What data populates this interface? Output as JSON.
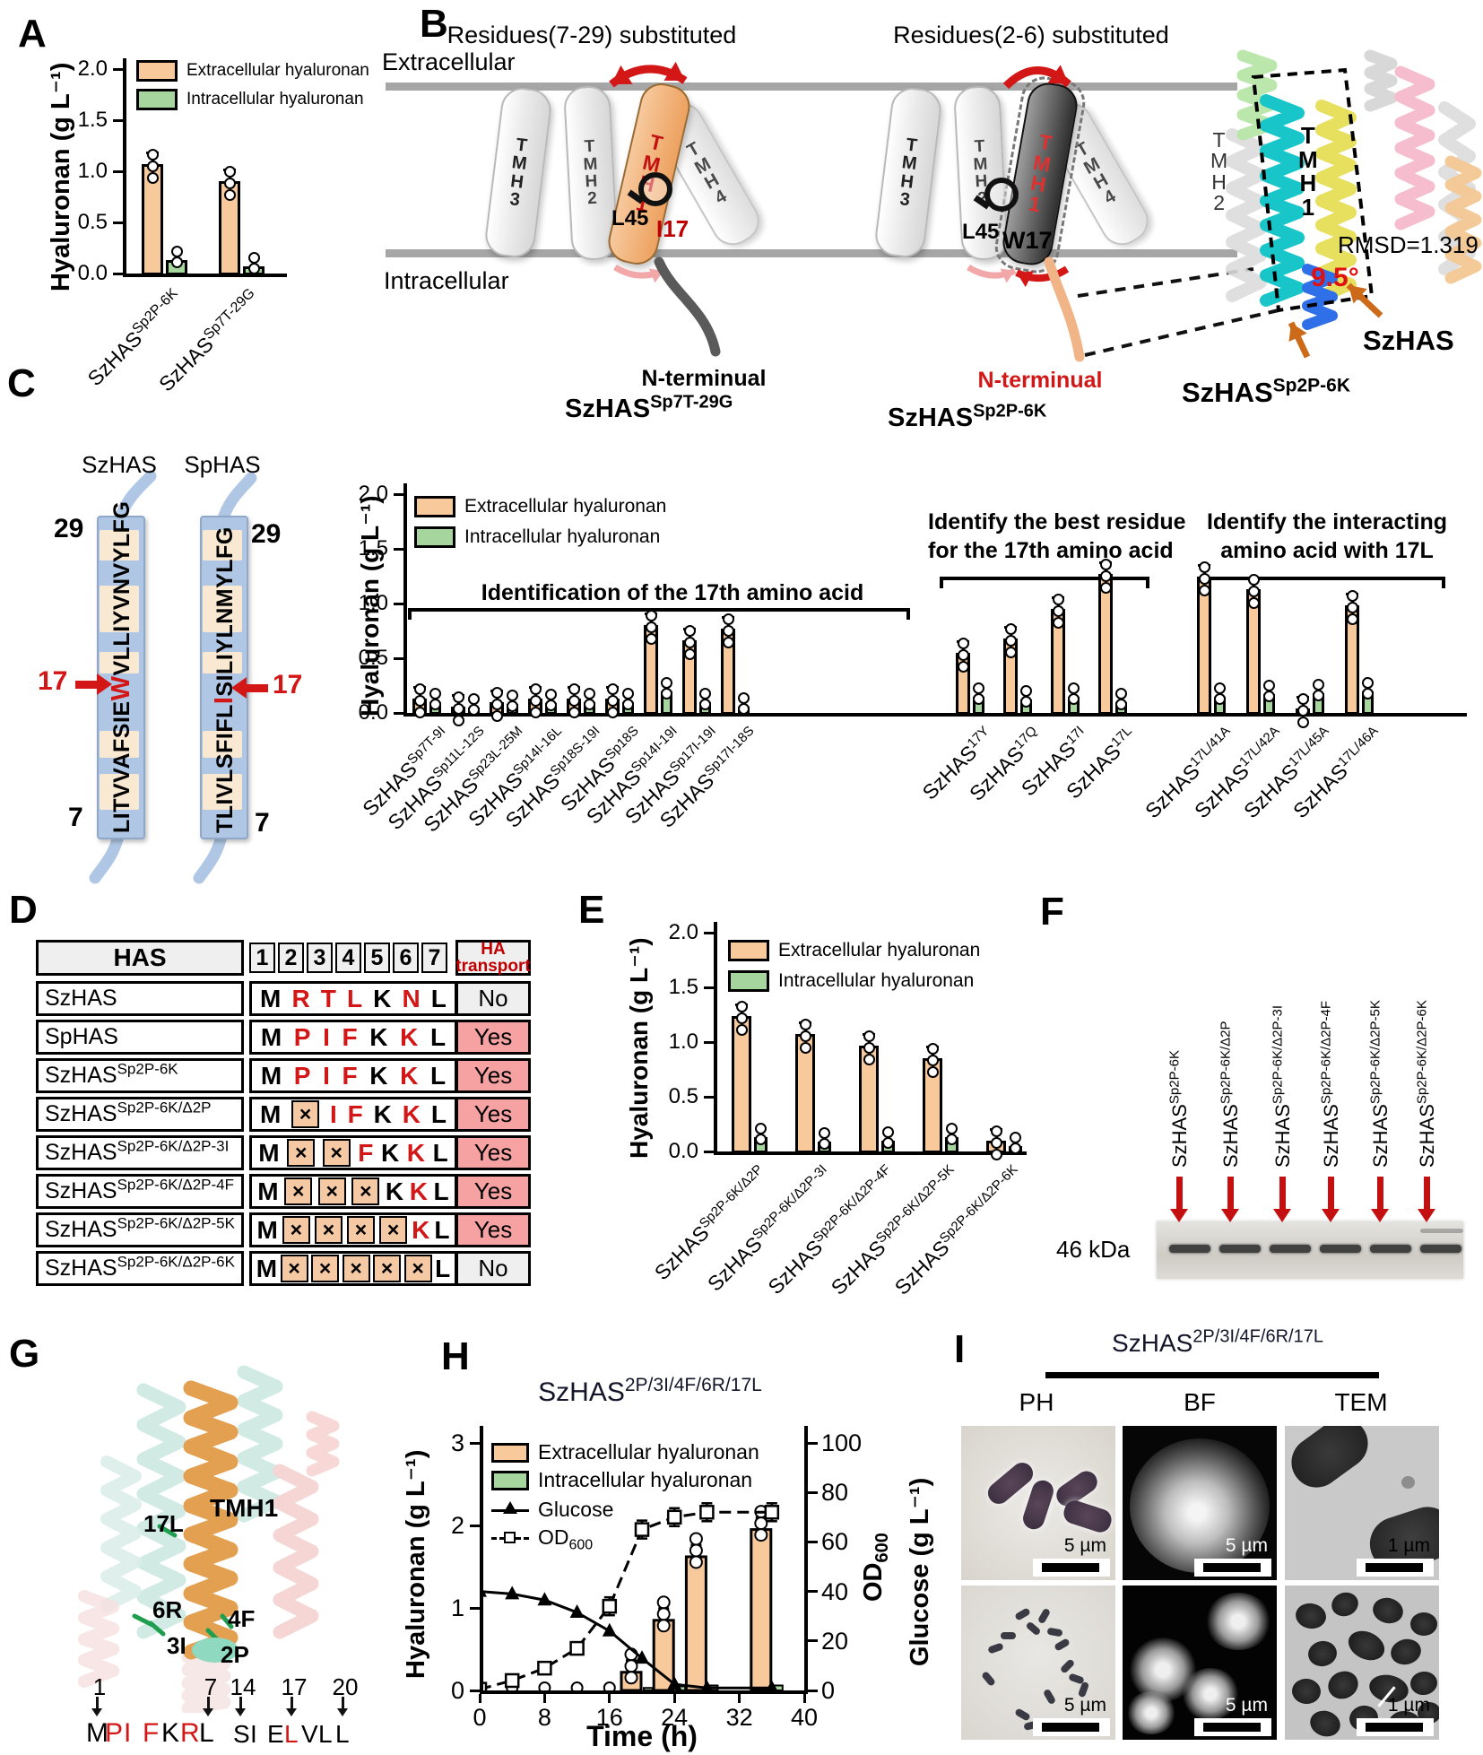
{
  "colors": {
    "extracellular_fill": "#F8C99B",
    "intracellular_fill": "#A6D69E",
    "yes_pink": "#F7A2A2",
    "header_gray": "#EFEFEF",
    "x_box_orange": "#F5C9A4",
    "red_accent": "#D31616",
    "dark_red_arrow": "#C41010",
    "membrane_gray": "#A6A6A6",
    "seq_bar_blue": "#AFC7E4",
    "seq_highlight_cream": "#F9E9D2",
    "tmh1_orange": "#EFAD7C",
    "helix_orange": "#E2A050",
    "helix_cyan": "#18C6C9",
    "helix_yellow": "#E7E05E",
    "helix_blue": "#2F6FE8",
    "arrow_orange": "#CC6A1A"
  },
  "legend": {
    "extracellular": "Extracellular hyaluronan",
    "intracellular": "Intracellular hyaluronan",
    "glucose": "Glucose",
    "od_base": "OD",
    "od_sub": "600"
  },
  "panelA": {
    "label": "A",
    "ylabel": "Hyaluronan (g L⁻¹)"
  },
  "panelB": {
    "label": "B",
    "left_title": "Residues(7-29) substituted",
    "mid_title": "Residues(2-6) substituted",
    "extracellular": "Extracellular",
    "intracellular": "Intracellular",
    "left": {
      "tmh": [
        "TMH3",
        "TMH2",
        "TMH1",
        "TMH4"
      ],
      "l45": "L45",
      "res17": "I17",
      "nterm": "N-terminual",
      "name_base": "SzHAS",
      "name_sup": "Sp7T-29G"
    },
    "mid": {
      "tmh": [
        "TMH3",
        "TMH2",
        "TMH1",
        "TMH4"
      ],
      "l45": "L45",
      "res17": "W17",
      "nterm": "N-terminual",
      "name_base": "SzHAS",
      "name_sup": "Sp2P-6K"
    },
    "right": {
      "tmh2": "TMH2",
      "tmh1": "TMH1",
      "rmsd": "RMSD=1.319",
      "angle": "9.5°",
      "name1": "SzHAS",
      "name2_base": "SzHAS",
      "name2_sup": "Sp2P-6K"
    }
  },
  "panelC": {
    "label": "C",
    "ylabel": "Hyaluronan (g L⁻¹)",
    "left": {
      "name1": "SzHAS",
      "name2": "SpHAS",
      "top_num": "29",
      "bottom_num": "7",
      "pos_label": "17",
      "seq1_before": "LITVVAFSIE",
      "seq1_res": "W",
      "seq1_after": "VLLIYVNVYLFG",
      "seq2_before": "TLIVLSFIFL",
      "seq2_res": "I",
      "seq2_after": "SILIYLNMYLFG"
    }
  },
  "panelD": {
    "label": "D",
    "header": {
      "has": "HAS",
      "positions": [
        "1",
        "2",
        "3",
        "4",
        "5",
        "6",
        "7"
      ],
      "transport_l1": "HA",
      "transport_l2": "transport"
    },
    "rows": [
      {
        "base": "SzHAS",
        "sup": "",
        "cells": [
          {
            "t": "M"
          },
          {
            "t": "R",
            "red": true
          },
          {
            "t": "T",
            "red": true
          },
          {
            "t": "L",
            "red": true
          },
          {
            "t": "K"
          },
          {
            "t": "N",
            "red": true
          },
          {
            "t": "L"
          }
        ],
        "transport": "No",
        "yes": false
      },
      {
        "base": "SpHAS",
        "sup": "",
        "cells": [
          {
            "t": "M"
          },
          {
            "t": "P",
            "red": true
          },
          {
            "t": "I",
            "red": true
          },
          {
            "t": "F",
            "red": true
          },
          {
            "t": "K"
          },
          {
            "t": "K",
            "red": true
          },
          {
            "t": "L"
          }
        ],
        "transport": "Yes",
        "yes": true
      },
      {
        "base": "SzHAS",
        "sup": "Sp2P-6K",
        "cells": [
          {
            "t": "M"
          },
          {
            "t": "P",
            "red": true
          },
          {
            "t": "I",
            "red": true
          },
          {
            "t": "F",
            "red": true
          },
          {
            "t": "K"
          },
          {
            "t": "K",
            "red": true
          },
          {
            "t": "L"
          }
        ],
        "transport": "Yes",
        "yes": true
      },
      {
        "base": "SzHAS",
        "sup": "Sp2P-6K/Δ2P",
        "cells": [
          {
            "t": "M"
          },
          {
            "x": true
          },
          {
            "t": "I",
            "red": true
          },
          {
            "t": "F",
            "red": true
          },
          {
            "t": "K"
          },
          {
            "t": "K",
            "red": true
          },
          {
            "t": "L"
          }
        ],
        "transport": "Yes",
        "yes": true
      },
      {
        "base": "SzHAS",
        "sup": "Sp2P-6K/Δ2P-3I",
        "cells": [
          {
            "t": "M"
          },
          {
            "x": true
          },
          {
            "x": true
          },
          {
            "t": "F",
            "red": true
          },
          {
            "t": "K"
          },
          {
            "t": "K",
            "red": true
          },
          {
            "t": "L"
          }
        ],
        "transport": "Yes",
        "yes": true
      },
      {
        "base": "SzHAS",
        "sup": "Sp2P-6K/Δ2P-4F",
        "cells": [
          {
            "t": "M"
          },
          {
            "x": true
          },
          {
            "x": true
          },
          {
            "x": true
          },
          {
            "t": "K"
          },
          {
            "t": "K",
            "red": true
          },
          {
            "t": "L"
          }
        ],
        "transport": "Yes",
        "yes": true
      },
      {
        "base": "SzHAS",
        "sup": "Sp2P-6K/Δ2P-5K",
        "cells": [
          {
            "t": "M"
          },
          {
            "x": true
          },
          {
            "x": true
          },
          {
            "x": true
          },
          {
            "x": true
          },
          {
            "t": "K",
            "red": true
          },
          {
            "t": "L"
          }
        ],
        "transport": "Yes",
        "yes": true
      },
      {
        "base": "SzHAS",
        "sup": "Sp2P-6K/Δ2P-6K",
        "cells": [
          {
            "t": "M"
          },
          {
            "x": true
          },
          {
            "x": true
          },
          {
            "x": true
          },
          {
            "x": true
          },
          {
            "x": true
          },
          {
            "t": "L"
          }
        ],
        "transport": "No",
        "yes": false
      }
    ]
  },
  "panelE": {
    "label": "E",
    "ylabel": "Hyaluronan (g L⁻¹)"
  },
  "panelF": {
    "label": "F",
    "marker": "46 kDa",
    "lanes": [
      {
        "base": "SzHAS",
        "sup": "Sp2P-6K"
      },
      {
        "base": "SzHAS",
        "sup": "Sp2P-6K/Δ2P"
      },
      {
        "base": "SzHAS",
        "sup": "Sp2P-6K/Δ2P-3I"
      },
      {
        "base": "SzHAS",
        "sup": "Sp2P-6K/Δ2P-4F"
      },
      {
        "base": "SzHAS",
        "sup": "Sp2P-6K/Δ2P-5K"
      },
      {
        "base": "SzHAS",
        "sup": "Sp2P-6K/Δ2P-6K"
      }
    ]
  },
  "panelG": {
    "label": "G",
    "tmh1": "TMH1",
    "r17": "17L",
    "r6": "6R",
    "r4": "4F",
    "r3": "3I",
    "r2": "2P",
    "positions": [
      "1",
      "7",
      "14",
      "17",
      "20"
    ],
    "seq1": [
      {
        "t": "M",
        "red": false
      },
      {
        "t": "P",
        "red": true
      },
      {
        "t": "I",
        "red": true
      },
      {
        "t": "F",
        "red": true
      },
      {
        "t": "K",
        "red": false
      },
      {
        "t": "R",
        "red": true
      },
      {
        "t": "L",
        "red": false
      }
    ],
    "seq2": [
      {
        "t": "S",
        "red": false
      },
      {
        "t": "I",
        "red": false
      },
      {
        "t": "E",
        "red": false
      },
      {
        "t": "L",
        "red": true
      },
      {
        "t": "V",
        "red": false
      },
      {
        "t": "L",
        "red": false
      },
      {
        "t": "L",
        "red": false
      }
    ]
  },
  "panelH": {
    "label": "H",
    "title_base": "SzHAS",
    "title_sup": "2P/3I/4F/6R/17L",
    "ylabel_left": "Hyaluronan (g L⁻¹)",
    "right_glucose": "Glucose  (g L⁻¹)",
    "xlabel": "Time (h)"
  },
  "panelI": {
    "label": "I",
    "title_base": "SzHAS",
    "title_sup": "2P/3I/4F/6R/17L",
    "columns": [
      "PH",
      "BF",
      "TEM"
    ],
    "scalebars_top": [
      "5 µm",
      "5 µm",
      "1 µm"
    ],
    "scalebars_bottom": [
      "5 µm",
      "5 µm",
      "1 µm"
    ]
  },
  "chart_data": [
    {
      "id": "A",
      "type": "bar",
      "ylabel": "Hyaluronan (g L⁻¹)",
      "ylim": [
        0,
        2
      ],
      "yticks": [
        "0.0",
        "0.5",
        "1.0",
        "1.5",
        "2.0"
      ],
      "categories": [
        {
          "base": "SzHAS",
          "sup": "Sp2P-6K"
        },
        {
          "base": "SzHAS",
          "sup": "Sp7T-29G"
        }
      ],
      "series": [
        {
          "name": "Extracellular hyaluronan",
          "values": [
            1.07,
            0.9
          ]
        },
        {
          "name": "Intracellular hyaluronan",
          "values": [
            0.13,
            0.07
          ]
        }
      ]
    },
    {
      "id": "C",
      "type": "bar",
      "ylabel": "Hyaluronan (g L⁻¹)",
      "ylim": [
        0,
        2
      ],
      "yticks": [
        "0.0",
        "0.5",
        "1.0",
        "1.5",
        "2.0"
      ],
      "groups": [
        {
          "title_lines": [
            "Identification of the 17th amino acid"
          ],
          "categories": [
            {
              "base": "SzHAS",
              "sup": "Sp7T-9I"
            },
            {
              "base": "SzHAS",
              "sup": "Sp11L-12S"
            },
            {
              "base": "SzHAS",
              "sup": "Sp23L-25M"
            },
            {
              "base": "SzHAS",
              "sup": "Sp14I-16L"
            },
            {
              "base": "SzHAS",
              "sup": "Sp18S-19I"
            },
            {
              "base": "SzHAS",
              "sup": "Sp18S"
            },
            {
              "base": "SzHAS",
              "sup": "Sp14I-19I"
            },
            {
              "base": "SzHAS",
              "sup": "Sp17I-19I"
            },
            {
              "base": "SzHAS",
              "sup": "Sp17I-18S"
            }
          ],
          "extracellular": [
            0.13,
            0.06,
            0.1,
            0.13,
            0.13,
            0.13,
            0.8,
            0.66,
            0.77
          ],
          "intracellular": [
            0.1,
            0.05,
            0.08,
            0.09,
            0.1,
            0.1,
            0.2,
            0.1,
            0.06
          ]
        },
        {
          "title_lines": [
            "Identify the best residue",
            "for the 17th amino acid"
          ],
          "categories": [
            {
              "base": "SzHAS",
              "sup": "17Y"
            },
            {
              "base": "SzHAS",
              "sup": "17Q"
            },
            {
              "base": "SzHAS",
              "sup": "17I"
            },
            {
              "base": "SzHAS",
              "sup": "17L"
            }
          ],
          "extracellular": [
            0.55,
            0.68,
            0.95,
            1.27
          ],
          "intracellular": [
            0.15,
            0.12,
            0.15,
            0.1
          ]
        },
        {
          "title_lines": [
            "Identify the interacting",
            "amino acid with 17L"
          ],
          "categories": [
            {
              "base": "SzHAS",
              "sup": "17L/41A"
            },
            {
              "base": "SzHAS",
              "sup": "17L/42A"
            },
            {
              "base": "SzHAS",
              "sup": "17L/45A"
            },
            {
              "base": "SzHAS",
              "sup": "17L/46A"
            }
          ],
          "extracellular": [
            1.25,
            1.13,
            0.04,
            0.98
          ],
          "intracellular": [
            0.15,
            0.17,
            0.18,
            0.2
          ]
        }
      ]
    },
    {
      "id": "E",
      "type": "bar",
      "ylabel": "Hyaluronan (g L⁻¹)",
      "ylim": [
        0,
        2
      ],
      "yticks": [
        "0.0",
        "0.5",
        "1.0",
        "1.5",
        "2.0"
      ],
      "categories": [
        {
          "base": "SzHAS",
          "sup": "Sp2P-6K/Δ2P"
        },
        {
          "base": "SzHAS",
          "sup": "Sp2P-6K/Δ2P-3I"
        },
        {
          "base": "SzHAS",
          "sup": "Sp2P-6K/Δ2P-4F"
        },
        {
          "base": "SzHAS",
          "sup": "Sp2P-6K/Δ2P-5K"
        },
        {
          "base": "SzHAS",
          "sup": "Sp2P-6K/Δ2P-6K"
        }
      ],
      "series": [
        {
          "name": "Extracellular hyaluronan",
          "values": [
            1.24,
            1.07,
            0.97,
            0.85,
            0.1
          ]
        },
        {
          "name": "Intracellular hyaluronan",
          "values": [
            0.13,
            0.09,
            0.1,
            0.13,
            0.05
          ]
        }
      ]
    },
    {
      "id": "H",
      "type": "combo",
      "title": "SzHAS 2P/3I/4F/6R/17L",
      "xlabel": "Time (h)",
      "xlim": [
        0,
        40
      ],
      "xticks": [
        0,
        8,
        16,
        24,
        32,
        40
      ],
      "ylabel_left": "Hyaluronan (g L⁻¹)",
      "ylim_left": [
        0,
        3
      ],
      "yticks_left": [
        0,
        1,
        2,
        3
      ],
      "ylabel_right": [
        "OD600",
        "Glucose (g L⁻¹)"
      ],
      "ylim_right": [
        0,
        100
      ],
      "yticks_right": [
        0,
        20,
        40,
        60,
        80,
        100
      ],
      "bars": {
        "x": [
          20,
          24,
          28,
          36
        ],
        "extracellular": [
          0.22,
          0.85,
          1.62,
          1.95
        ],
        "intracellular": [
          0.03,
          0.05,
          0.06,
          0.06
        ]
      },
      "lines": [
        {
          "name": "Glucose",
          "axis": "right",
          "marker": "filled-triangle",
          "x": [
            0,
            4,
            8,
            12,
            16,
            20,
            24,
            28,
            36
          ],
          "y": [
            40,
            39,
            36.5,
            31.5,
            24,
            13,
            2.5,
            1,
            1
          ]
        },
        {
          "name": "OD600",
          "axis": "right",
          "marker": "open-square",
          "x": [
            0,
            4,
            8,
            12,
            16,
            20,
            24,
            28,
            36
          ],
          "y": [
            0.5,
            4,
            9,
            17,
            34,
            65,
            70,
            72,
            72
          ]
        }
      ]
    }
  ]
}
